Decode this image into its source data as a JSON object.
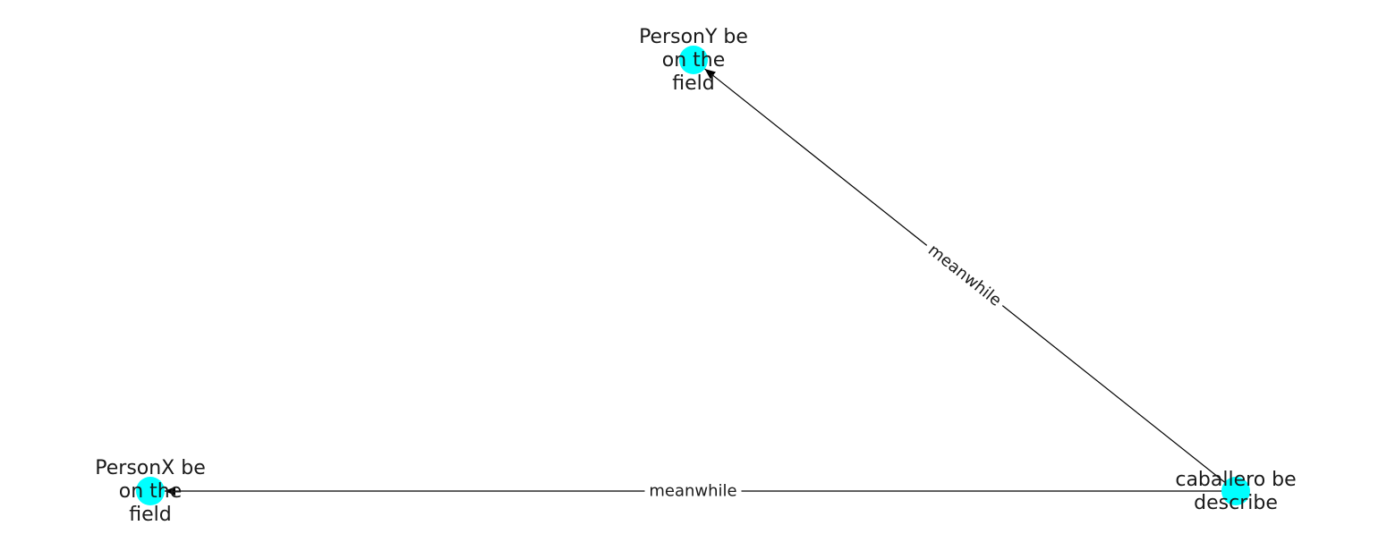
{
  "graph": {
    "node_color": "#00ffff",
    "edge_color": "#000000",
    "nodes": [
      {
        "id": "personY",
        "label_lines": [
          "PersonY be",
          "on the",
          "field"
        ]
      },
      {
        "id": "personX",
        "label_lines": [
          "PersonX be",
          "on the",
          "field"
        ]
      },
      {
        "id": "caballero",
        "label_lines": [
          "caballero be",
          "describe"
        ]
      }
    ],
    "edges": [
      {
        "source": "caballero",
        "target": "personY",
        "label": "meanwhile"
      },
      {
        "source": "caballero",
        "target": "personX",
        "label": "meanwhile"
      }
    ]
  }
}
